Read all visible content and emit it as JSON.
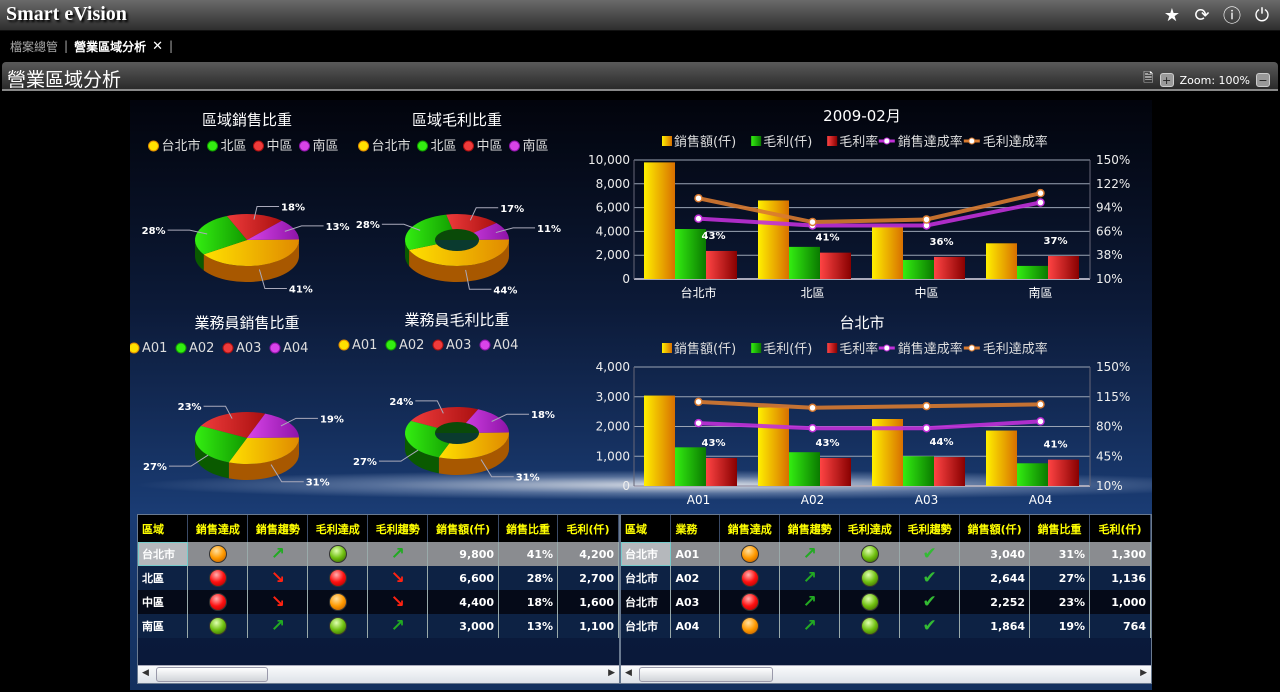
{
  "app": {
    "title": "Smart eVision",
    "icons": [
      "star-icon",
      "refresh-icon",
      "help-icon",
      "power-icon"
    ]
  },
  "tabs": [
    {
      "label": "檔案總管",
      "active": false
    },
    {
      "label": "營業區域分析",
      "active": true
    }
  ],
  "page": {
    "title": "營業區域分析",
    "zoom_label": "Zoom: 100%"
  },
  "colors": {
    "sales": "#f5c400",
    "margin": "#22cc11",
    "margin_rate": "#d42a2a",
    "sales_rate": "#c030d8",
    "margin_achv": "#d87a30"
  },
  "chart_data": [
    {
      "type": "pie",
      "title": "區域銷售比重",
      "categories": [
        "台北市",
        "北區",
        "中區",
        "南區"
      ],
      "values": [
        41,
        28,
        18,
        13
      ],
      "donut": false
    },
    {
      "type": "pie",
      "title": "區域毛利比重",
      "categories": [
        "台北市",
        "北區",
        "中區",
        "南區"
      ],
      "values": [
        44,
        28,
        17,
        11
      ],
      "donut": true
    },
    {
      "type": "pie",
      "title": "業務員銷售比重",
      "categories": [
        "A01",
        "A02",
        "A03",
        "A04"
      ],
      "values": [
        31,
        27,
        23,
        19
      ],
      "donut": false
    },
    {
      "type": "pie",
      "title": "業務員毛利比重",
      "categories": [
        "A01",
        "A02",
        "A03",
        "A04"
      ],
      "values": [
        31,
        27,
        24,
        18
      ],
      "donut": true
    },
    {
      "type": "bar",
      "title": "2009-02月",
      "categories": [
        "台北市",
        "北區",
        "中區",
        "南區"
      ],
      "ylim": [
        0,
        10000
      ],
      "yticks": [
        "0",
        "2,000",
        "4,000",
        "6,000",
        "8,000",
        "10,000"
      ],
      "y2lim": [
        10,
        150
      ],
      "y2ticks": [
        "10%",
        "38%",
        "66%",
        "94%",
        "122%",
        "150%"
      ],
      "series": [
        {
          "name": "銷售額(仟)",
          "axis": "left",
          "kind": "bar",
          "values": [
            9800,
            6600,
            4400,
            3000
          ]
        },
        {
          "name": "毛利(仟)",
          "axis": "left",
          "kind": "bar",
          "values": [
            4200,
            2700,
            1600,
            1100
          ]
        },
        {
          "name": "毛利率",
          "axis": "right",
          "kind": "bar",
          "values": [
            43,
            41,
            36,
            37
          ],
          "labels": [
            "43%",
            "41%",
            "36%",
            "37%"
          ]
        },
        {
          "name": "銷售達成率",
          "axis": "right",
          "kind": "line",
          "values": [
            81,
            73,
            73,
            100
          ]
        },
        {
          "name": "毛利達成率",
          "axis": "right",
          "kind": "line",
          "values": [
            105,
            77,
            80,
            111
          ]
        }
      ]
    },
    {
      "type": "bar",
      "title": "台北市",
      "categories": [
        "A01",
        "A02",
        "A03",
        "A04"
      ],
      "ylim": [
        0,
        4000
      ],
      "yticks": [
        "0",
        "1,000",
        "2,000",
        "3,000",
        "4,000"
      ],
      "y2lim": [
        10,
        150
      ],
      "y2ticks": [
        "10%",
        "45%",
        "80%",
        "115%",
        "150%"
      ],
      "series": [
        {
          "name": "銷售額(仟)",
          "axis": "left",
          "kind": "bar",
          "values": [
            3040,
            2644,
            2252,
            1864
          ]
        },
        {
          "name": "毛利(仟)",
          "axis": "left",
          "kind": "bar",
          "values": [
            1300,
            1136,
            1000,
            764
          ]
        },
        {
          "name": "毛利率",
          "axis": "right",
          "kind": "bar",
          "values": [
            43,
            43,
            44,
            41
          ],
          "labels": [
            "43%",
            "43%",
            "44%",
            "41%"
          ]
        },
        {
          "name": "銷售達成率",
          "axis": "right",
          "kind": "line",
          "values": [
            84,
            78,
            78,
            86
          ]
        },
        {
          "name": "毛利達成率",
          "axis": "right",
          "kind": "line",
          "values": [
            109,
            102,
            104,
            106
          ]
        }
      ]
    }
  ],
  "region_table": {
    "headers": [
      "區域",
      "銷售達成",
      "銷售趨勢",
      "毛利達成",
      "毛利趨勢",
      "銷售額(仟)",
      "銷售比重",
      "毛利(仟)"
    ],
    "rows": [
      [
        "台北市",
        "orange",
        "up",
        "green",
        "up",
        "9,800",
        "41%",
        "4,200"
      ],
      [
        "北區",
        "red",
        "down",
        "red",
        "down",
        "6,600",
        "28%",
        "2,700"
      ],
      [
        "中區",
        "red",
        "down",
        "orange",
        "down",
        "4,400",
        "18%",
        "1,600"
      ],
      [
        "南區",
        "green",
        "up",
        "green",
        "up",
        "3,000",
        "13%",
        "1,100"
      ]
    ]
  },
  "agent_table": {
    "headers": [
      "區域",
      "業務",
      "銷售達成",
      "銷售趨勢",
      "毛利達成",
      "毛利趨勢",
      "銷售額(仟)",
      "銷售比重",
      "毛利(仟)"
    ],
    "rows": [
      [
        "台北市",
        "A01",
        "orange",
        "up",
        "green",
        "check",
        "3,040",
        "31%",
        "1,300"
      ],
      [
        "台北市",
        "A02",
        "red",
        "up",
        "green",
        "check",
        "2,644",
        "27%",
        "1,136"
      ],
      [
        "台北市",
        "A03",
        "red",
        "up",
        "green",
        "check",
        "2,252",
        "23%",
        "1,000"
      ],
      [
        "台北市",
        "A04",
        "orange",
        "up",
        "green",
        "check",
        "1,864",
        "19%",
        "764"
      ]
    ]
  }
}
